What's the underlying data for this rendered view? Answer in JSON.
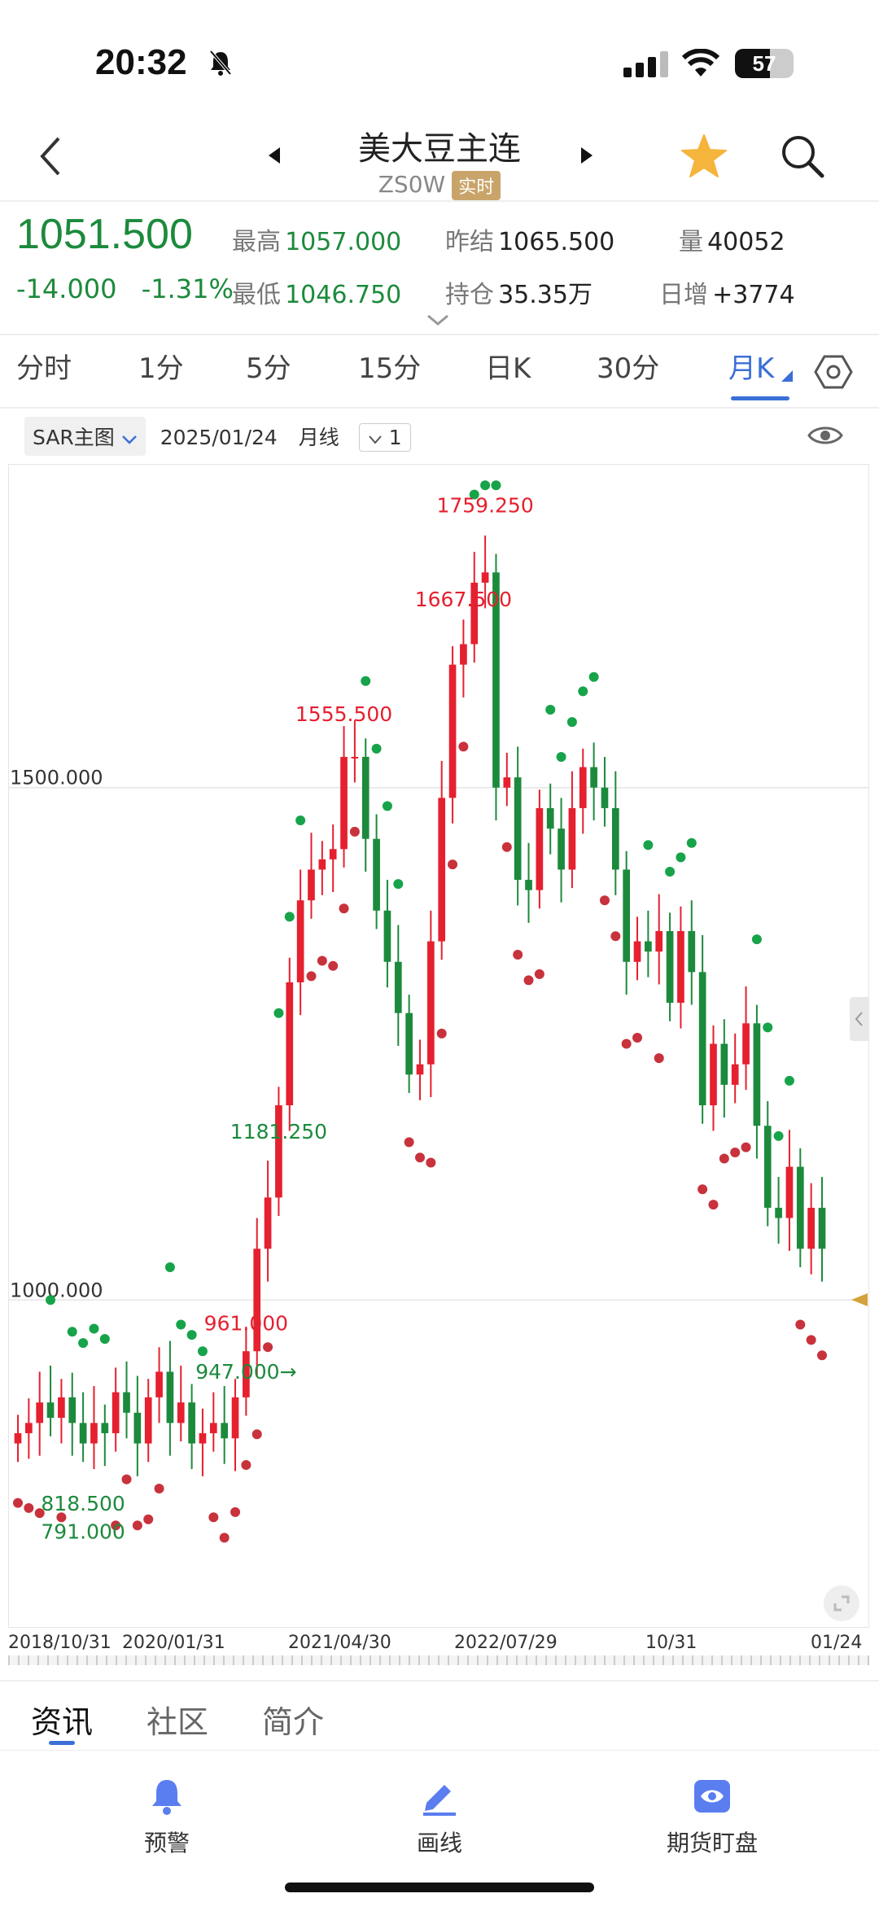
{
  "status_bar": {
    "time": "20:32",
    "battery": "57"
  },
  "nav": {
    "title": "美大豆主连",
    "code": "ZS0W",
    "badge": "实时"
  },
  "quote": {
    "price": "1051.500",
    "change": "-14.000",
    "change_pct": "-1.31%",
    "high_label": "最高",
    "high": "1057.000",
    "low_label": "最低",
    "low": "1046.750",
    "prev_close_label": "昨结",
    "prev_close": "1065.500",
    "open_interest_label": "持仓",
    "open_interest": "35.35万",
    "volume_label": "量",
    "volume": "40052",
    "daily_change_label": "日增",
    "daily_change": "+3774"
  },
  "period_tabs": [
    "分时",
    "1分",
    "5分",
    "15分",
    "日K",
    "30分",
    "月K"
  ],
  "chart_toolbar": {
    "indicator": "SAR主图",
    "date": "2025/01/24",
    "period": "月线",
    "count": "1"
  },
  "chart_data": {
    "type": "candlestick",
    "y_ticks": [
      {
        "value": 1500,
        "label": "1500.000"
      },
      {
        "value": 1000,
        "label": "1000.000"
      }
    ],
    "ylim": [
      700,
      1800
    ],
    "x_labels": [
      "2018/10/31",
      "2020/01/31",
      "2021/04/30",
      "2022/07/29",
      "10/31",
      "01/24"
    ],
    "annotations": [
      {
        "text": "1759.250",
        "value": 1759.25,
        "kind": "high"
      },
      {
        "text": "1667.500",
        "value": 1667.5,
        "kind": "high"
      },
      {
        "text": "1555.500",
        "value": 1555.5,
        "kind": "high"
      },
      {
        "text": "961.000",
        "value": 961.0,
        "kind": "high"
      },
      {
        "text": "1181.250",
        "value": 1181.25,
        "kind": "low"
      },
      {
        "text": "818.500",
        "value": 818.5,
        "kind": "low"
      },
      {
        "text": "791.000",
        "value": 791.0,
        "kind": "low"
      },
      {
        "text": "947.000→",
        "value": 947.0,
        "kind": "low"
      }
    ],
    "closes": [
      870,
      880,
      900,
      885,
      905,
      880,
      860,
      880,
      870,
      910,
      890,
      860,
      905,
      930,
      880,
      900,
      860,
      870,
      880,
      865,
      905,
      950,
      1050,
      1100,
      1190,
      1310,
      1390,
      1420,
      1430,
      1440,
      1530,
      1530,
      1450,
      1380,
      1330,
      1280,
      1220,
      1230,
      1350,
      1490,
      1620,
      1640,
      1700,
      1710,
      1500,
      1510,
      1410,
      1400,
      1480,
      1460,
      1420,
      1480,
      1520,
      1500,
      1480,
      1420,
      1330,
      1350,
      1340,
      1360,
      1290,
      1360,
      1320,
      1190,
      1250,
      1210,
      1230,
      1270,
      1170,
      1090,
      1080,
      1130,
      1050,
      1090,
      1050
    ]
  },
  "bottom_tabs": [
    "资讯",
    "社区",
    "简介"
  ],
  "footer": {
    "alert": "预警",
    "draw": "画线",
    "watch": "期货盯盘"
  },
  "colors": {
    "up": "#e5202f",
    "down": "#1c8a3c",
    "accent": "#3b6fd8"
  }
}
